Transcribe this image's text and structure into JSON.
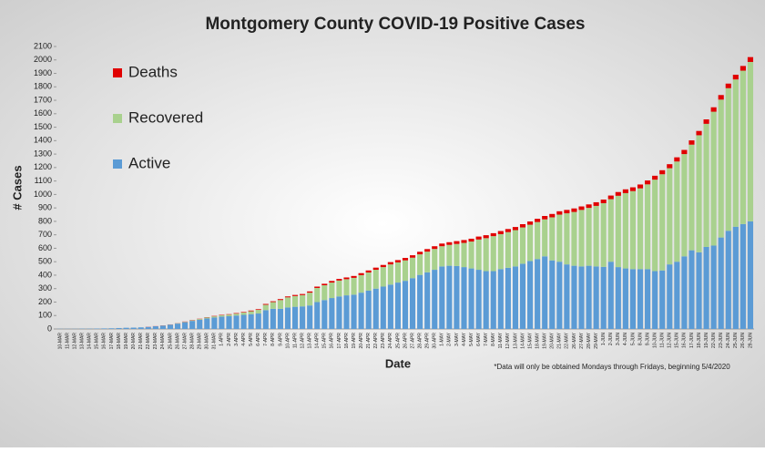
{
  "chart_data": {
    "type": "stacked_bar",
    "title": "Montgomery County COVID-19 Positive Cases",
    "x_label": "Date",
    "y_label": "# Cases",
    "annotation": "*Data will only be obtained Mondays through Fridays, beginning 5/4/2020",
    "categories": [
      "10-MAR",
      "11-MAR",
      "12-MAR",
      "13-MAR",
      "14-MAR",
      "15-MAR",
      "16-MAR",
      "17-MAR",
      "18-MAR",
      "19-MAR",
      "20-MAR",
      "21-MAR",
      "22-MAR",
      "23-MAR",
      "24-MAR",
      "25-MAR",
      "26-MAR",
      "27-MAR",
      "28-MAR",
      "29-MAR",
      "30-MAR",
      "31-MAR",
      "1-APR",
      "2-APR",
      "3-APR",
      "4-APR",
      "5-APR",
      "6-APR",
      "7-APR",
      "8-APR",
      "9-APR",
      "10-APR",
      "11-APR",
      "12-APR",
      "13-APR",
      "14-APR",
      "15-APR",
      "16-APR",
      "17-APR",
      "18-APR",
      "19-APR",
      "20-APR",
      "21-APR",
      "22-APR",
      "23-APR",
      "24-APR",
      "25-APR",
      "26-APR",
      "27-APR",
      "28-APR",
      "29-APR",
      "30-APR",
      "1-MAY",
      "2-MAY",
      "3-MAY",
      "4-MAY",
      "5-MAY",
      "6-MAY",
      "7-MAY",
      "8-MAY",
      "11-MAY",
      "12-MAY",
      "13-MAY",
      "14-MAY",
      "15-MAY",
      "18-MAY",
      "19-MAY",
      "20-MAY",
      "21-MAY",
      "22-MAY",
      "26-MAY",
      "27-MAY",
      "28-MAY",
      "29-MAY",
      "1-JUN",
      "2-JUN",
      "3-JUN",
      "4-JUN",
      "5-JUN",
      "8-JUN",
      "9-JUN",
      "10-JUN",
      "11-JUN",
      "12-JUN",
      "15-JUN",
      "16-JUN",
      "17-JUN",
      "18-JUN",
      "19-JUN",
      "22-JUN",
      "23-JUN",
      "24-JUN",
      "25-JUN",
      "26-JUN",
      "29-JUN"
    ],
    "series": [
      {
        "name": "Active",
        "color": "#5b9bd5",
        "values": [
          1,
          1,
          1,
          2,
          2,
          3,
          4,
          5,
          7,
          9,
          10,
          12,
          15,
          20,
          25,
          32,
          40,
          50,
          60,
          68,
          78,
          85,
          92,
          95,
          100,
          105,
          110,
          115,
          140,
          150,
          150,
          160,
          165,
          168,
          175,
          200,
          215,
          230,
          242,
          250,
          255,
          270,
          285,
          300,
          315,
          330,
          345,
          358,
          378,
          402,
          421,
          440,
          465,
          470,
          468,
          460,
          450,
          440,
          430,
          430,
          445,
          455,
          465,
          485,
          505,
          520,
          540,
          510,
          500,
          480,
          470,
          465,
          470,
          465,
          462,
          500,
          460,
          450,
          445,
          445,
          445,
          430,
          435,
          480,
          500,
          540,
          585,
          570,
          610,
          620,
          680,
          730,
          760,
          780,
          800
        ]
      },
      {
        "name": "Recovered",
        "color": "#a9d18e",
        "values": [
          0,
          0,
          0,
          0,
          0,
          0,
          0,
          0,
          0,
          0,
          0,
          0,
          0,
          0,
          1,
          1,
          2,
          3,
          4,
          6,
          8,
          9,
          10,
          12,
          14,
          17,
          22,
          27,
          40,
          50,
          65,
          75,
          80,
          84,
          95,
          105,
          110,
          115,
          118,
          120,
          125,
          130,
          135,
          140,
          145,
          150,
          150,
          152,
          152,
          153,
          154,
          155,
          150,
          155,
          164,
          180,
          200,
          225,
          245,
          260,
          260,
          265,
          270,
          270,
          270,
          275,
          275,
          320,
          350,
          380,
          400,
          420,
          430,
          450,
          473,
          465,
          530,
          560,
          580,
          600,
          630,
          680,
          715,
          715,
          745,
          760,
          785,
          870,
          915,
          995,
          1025,
          1060,
          1095,
          1140,
          1185
        ]
      },
      {
        "name": "Deaths",
        "color": "#e00000",
        "values": [
          0,
          0,
          0,
          0,
          0,
          0,
          0,
          0,
          0,
          0,
          0,
          0,
          1,
          1,
          1,
          1,
          1,
          2,
          2,
          2,
          2,
          3,
          3,
          3,
          4,
          4,
          5,
          5,
          6,
          6,
          7,
          7,
          8,
          8,
          9,
          10,
          11,
          12,
          12,
          13,
          14,
          15,
          15,
          16,
          16,
          17,
          17,
          18,
          18,
          19,
          19,
          20,
          20,
          20,
          21,
          21,
          21,
          22,
          22,
          22,
          23,
          23,
          23,
          24,
          24,
          24,
          25,
          25,
          25,
          25,
          26,
          26,
          26,
          27,
          27,
          27,
          28,
          28,
          28,
          29,
          29,
          29,
          30,
          30,
          31,
          31,
          32,
          32,
          33,
          33,
          34,
          34,
          35,
          35,
          36
        ]
      }
    ],
    "ylim": [
      0,
      2100
    ],
    "yticks": [
      0,
      100,
      200,
      300,
      400,
      500,
      600,
      700,
      800,
      900,
      1000,
      1100,
      1200,
      1300,
      1400,
      1500,
      1600,
      1700,
      1800,
      1900,
      2000,
      2100
    ],
    "grid": false
  }
}
